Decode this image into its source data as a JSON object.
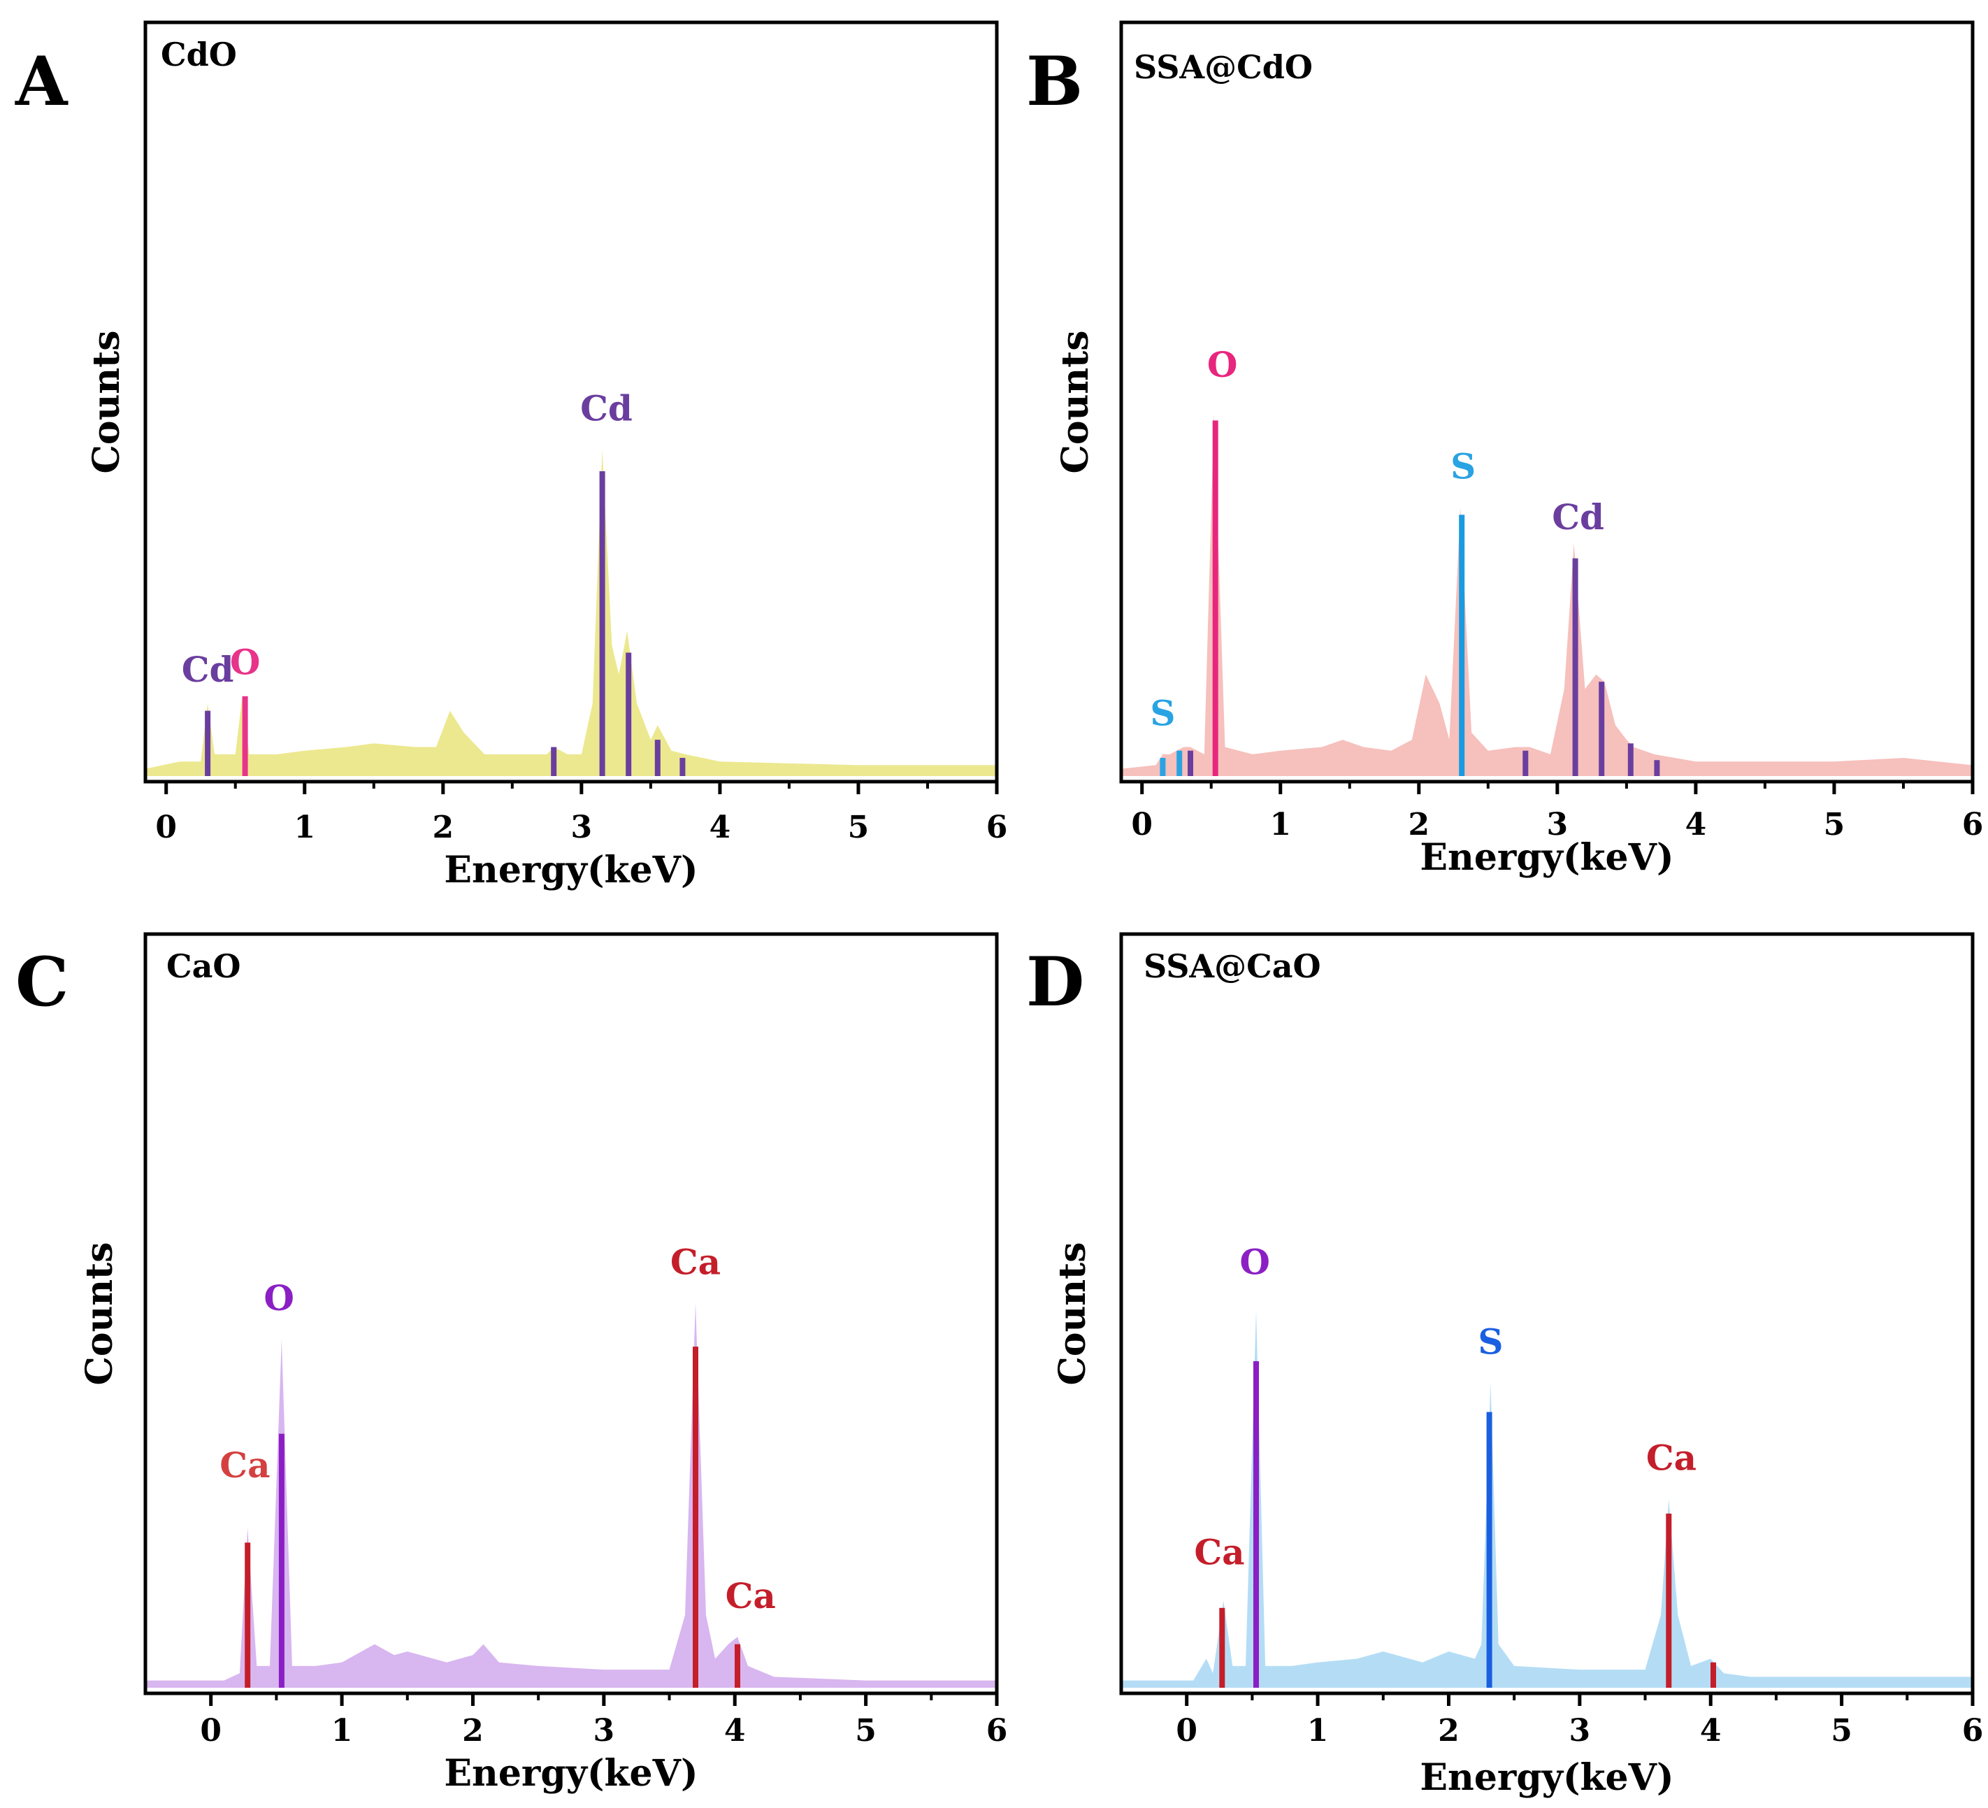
{
  "figure": {
    "panels": [
      "A",
      "B",
      "C",
      "D"
    ]
  },
  "chart_data": [
    {
      "panel_letter": "A",
      "type": "area",
      "title": "CdO",
      "xlabel": "Energy(keV)",
      "ylabel": "Counts",
      "xlim": [
        -0.15,
        6
      ],
      "ylim": [
        0,
        100
      ],
      "xticks": [
        0,
        1,
        2,
        3,
        4,
        5,
        6
      ],
      "fill_color": "#ece88f",
      "spectrum": [
        [
          -0.15,
          1
        ],
        [
          0.1,
          2
        ],
        [
          0.25,
          2
        ],
        [
          0.3,
          10
        ],
        [
          0.35,
          3
        ],
        [
          0.45,
          3
        ],
        [
          0.5,
          3
        ],
        [
          0.55,
          11
        ],
        [
          0.6,
          3
        ],
        [
          0.8,
          3
        ],
        [
          1.0,
          3.5
        ],
        [
          1.3,
          4
        ],
        [
          1.5,
          4.5
        ],
        [
          1.8,
          4
        ],
        [
          1.95,
          4
        ],
        [
          2.05,
          9
        ],
        [
          2.15,
          6
        ],
        [
          2.3,
          3
        ],
        [
          2.6,
          3
        ],
        [
          2.75,
          3
        ],
        [
          2.8,
          4
        ],
        [
          2.9,
          3
        ],
        [
          3.0,
          3
        ],
        [
          3.08,
          10
        ],
        [
          3.15,
          45
        ],
        [
          3.22,
          18
        ],
        [
          3.27,
          14
        ],
        [
          3.33,
          20
        ],
        [
          3.4,
          10
        ],
        [
          3.5,
          5
        ],
        [
          3.55,
          7
        ],
        [
          3.65,
          3.5
        ],
        [
          3.75,
          3
        ],
        [
          4.0,
          2
        ],
        [
          5.0,
          1.5
        ],
        [
          6,
          1.5
        ]
      ],
      "lines": [
        {
          "x": 0.3,
          "h": 9,
          "color": "#6a3e9e"
        },
        {
          "x": 0.57,
          "h": 11,
          "color": "#e8338a"
        },
        {
          "x": 2.8,
          "h": 4,
          "color": "#6a3e9e"
        },
        {
          "x": 3.15,
          "h": 42,
          "color": "#6a3e9e"
        },
        {
          "x": 3.34,
          "h": 17,
          "color": "#6a3e9e"
        },
        {
          "x": 3.55,
          "h": 5,
          "color": "#6a3e9e"
        },
        {
          "x": 3.73,
          "h": 2.5,
          "color": "#6a3e9e"
        }
      ],
      "labels": [
        {
          "text": "Cd",
          "x": 0.3,
          "y": 13,
          "color": "#6a3e9e"
        },
        {
          "text": "O",
          "x": 0.57,
          "y": 14,
          "color": "#e8338a"
        },
        {
          "text": "Cd",
          "x": 3.18,
          "y": 49,
          "color": "#6a3e9e"
        }
      ]
    },
    {
      "panel_letter": "B",
      "type": "area",
      "title": "SSA@CdO",
      "xlabel": "Energy(keV)",
      "ylabel": "Counts",
      "xlim": [
        -0.15,
        6
      ],
      "ylim": [
        0,
        100
      ],
      "xticks": [
        0,
        1,
        2,
        3,
        4,
        5,
        6
      ],
      "fill_color": "#f6c0bc",
      "spectrum": [
        [
          -0.15,
          1
        ],
        [
          0.1,
          1.5
        ],
        [
          0.15,
          3
        ],
        [
          0.2,
          3
        ],
        [
          0.25,
          3.5
        ],
        [
          0.3,
          4
        ],
        [
          0.35,
          4
        ],
        [
          0.45,
          3
        ],
        [
          0.52,
          50
        ],
        [
          0.6,
          4
        ],
        [
          0.8,
          3
        ],
        [
          1.0,
          3.5
        ],
        [
          1.3,
          4
        ],
        [
          1.45,
          5
        ],
        [
          1.6,
          4
        ],
        [
          1.8,
          3.5
        ],
        [
          1.95,
          5
        ],
        [
          2.05,
          14
        ],
        [
          2.15,
          10
        ],
        [
          2.22,
          5
        ],
        [
          2.3,
          37
        ],
        [
          2.38,
          6
        ],
        [
          2.5,
          3.5
        ],
        [
          2.7,
          4
        ],
        [
          2.8,
          4
        ],
        [
          2.95,
          3
        ],
        [
          3.05,
          12
        ],
        [
          3.12,
          32
        ],
        [
          3.2,
          12
        ],
        [
          3.28,
          14
        ],
        [
          3.34,
          13
        ],
        [
          3.42,
          7
        ],
        [
          3.5,
          5
        ],
        [
          3.55,
          4
        ],
        [
          3.7,
          3
        ],
        [
          4.0,
          2
        ],
        [
          5.0,
          2
        ],
        [
          5.5,
          2.5
        ],
        [
          6,
          1.5
        ]
      ],
      "lines": [
        {
          "x": 0.15,
          "h": 2.5,
          "color": "#29a3e3"
        },
        {
          "x": 0.27,
          "h": 3.5,
          "color": "#29a3e3"
        },
        {
          "x": 0.35,
          "h": 3.5,
          "color": "#6a3e9e"
        },
        {
          "x": 0.53,
          "h": 49,
          "color": "#e8267e"
        },
        {
          "x": 2.31,
          "h": 36,
          "color": "#1a9ae0"
        },
        {
          "x": 2.77,
          "h": 3.5,
          "color": "#6a3e9e"
        },
        {
          "x": 3.13,
          "h": 30,
          "color": "#6a3e9e"
        },
        {
          "x": 3.32,
          "h": 13,
          "color": "#6a3e9e"
        },
        {
          "x": 3.53,
          "h": 4.5,
          "color": "#6a3e9e"
        },
        {
          "x": 3.72,
          "h": 2.2,
          "color": "#6a3e9e"
        }
      ],
      "labels": [
        {
          "text": "S",
          "x": 0.15,
          "y": 7,
          "color": "#29a3e3"
        },
        {
          "text": "O",
          "x": 0.58,
          "y": 55,
          "color": "#e8267e"
        },
        {
          "text": "S",
          "x": 2.32,
          "y": 41,
          "color": "#29a3e3"
        },
        {
          "text": "Cd",
          "x": 3.15,
          "y": 34,
          "color": "#6a3e9e"
        }
      ]
    },
    {
      "panel_letter": "C",
      "type": "area",
      "title": "CaO",
      "xlabel": "Energy(keV)",
      "ylabel": "Counts",
      "xlim": [
        -0.5,
        6
      ],
      "ylim": [
        0,
        100
      ],
      "xticks": [
        0,
        1,
        2,
        3,
        4,
        5,
        6
      ],
      "fill_color": "#d8b6f0",
      "spectrum": [
        [
          -0.5,
          1
        ],
        [
          0.1,
          1
        ],
        [
          0.22,
          2
        ],
        [
          0.28,
          22
        ],
        [
          0.35,
          3
        ],
        [
          0.45,
          3
        ],
        [
          0.54,
          48
        ],
        [
          0.62,
          3
        ],
        [
          0.8,
          3
        ],
        [
          1.0,
          3.5
        ],
        [
          1.25,
          6
        ],
        [
          1.4,
          4.5
        ],
        [
          1.5,
          5
        ],
        [
          1.8,
          3.5
        ],
        [
          2.0,
          4.5
        ],
        [
          2.08,
          6
        ],
        [
          2.2,
          3.5
        ],
        [
          2.5,
          3
        ],
        [
          3.0,
          2.5
        ],
        [
          3.5,
          2.5
        ],
        [
          3.62,
          10
        ],
        [
          3.7,
          53
        ],
        [
          3.78,
          10
        ],
        [
          3.85,
          4
        ],
        [
          3.95,
          6
        ],
        [
          4.02,
          7
        ],
        [
          4.1,
          3
        ],
        [
          4.3,
          1.5
        ],
        [
          5.0,
          1
        ],
        [
          6,
          1
        ]
      ],
      "lines": [
        {
          "x": 0.28,
          "h": 20,
          "color": "#c41e2a"
        },
        {
          "x": 0.54,
          "h": 35,
          "color": "#8b1fc4"
        },
        {
          "x": 3.7,
          "h": 47,
          "color": "#c41e2a"
        },
        {
          "x": 4.02,
          "h": 6,
          "color": "#c41e2a"
        }
      ],
      "labels": [
        {
          "text": "Ca",
          "x": 0.26,
          "y": 29,
          "color": "#d44040"
        },
        {
          "text": "O",
          "x": 0.52,
          "y": 52,
          "color": "#8b1fc4"
        },
        {
          "text": "Ca",
          "x": 3.7,
          "y": 57,
          "color": "#c41e2a"
        },
        {
          "text": "Ca",
          "x": 4.12,
          "y": 11,
          "color": "#c41e2a"
        }
      ]
    },
    {
      "panel_letter": "D",
      "type": "area",
      "title": "SSA@CaO",
      "xlabel": "Energy(keV)",
      "ylabel": "Counts",
      "xlim": [
        -0.5,
        6
      ],
      "ylim": [
        0,
        100
      ],
      "xticks": [
        0,
        1,
        2,
        3,
        4,
        5,
        6
      ],
      "fill_color": "#b4ddf5",
      "spectrum": [
        [
          -0.5,
          1
        ],
        [
          0.05,
          1
        ],
        [
          0.15,
          4
        ],
        [
          0.2,
          2
        ],
        [
          0.28,
          12
        ],
        [
          0.35,
          3
        ],
        [
          0.45,
          3
        ],
        [
          0.53,
          52
        ],
        [
          0.6,
          3
        ],
        [
          0.8,
          3
        ],
        [
          1.0,
          3.5
        ],
        [
          1.3,
          4
        ],
        [
          1.5,
          5
        ],
        [
          1.8,
          3.5
        ],
        [
          2.0,
          5
        ],
        [
          2.2,
          4
        ],
        [
          2.25,
          6
        ],
        [
          2.32,
          42
        ],
        [
          2.38,
          6
        ],
        [
          2.5,
          3
        ],
        [
          3.0,
          2.5
        ],
        [
          3.5,
          2.5
        ],
        [
          3.62,
          10
        ],
        [
          3.68,
          26
        ],
        [
          3.75,
          10
        ],
        [
          3.85,
          3
        ],
        [
          4.0,
          4
        ],
        [
          4.1,
          2
        ],
        [
          4.3,
          1.5
        ],
        [
          5.0,
          1.5
        ],
        [
          6,
          1.5
        ]
      ],
      "lines": [
        {
          "x": 0.27,
          "h": 11,
          "color": "#c41e2a"
        },
        {
          "x": 0.53,
          "h": 45,
          "color": "#8b1fc4"
        },
        {
          "x": 2.31,
          "h": 38,
          "color": "#1a5fe0"
        },
        {
          "x": 3.68,
          "h": 24,
          "color": "#c41e2a"
        },
        {
          "x": 4.02,
          "h": 3.5,
          "color": "#c41e2a"
        }
      ],
      "labels": [
        {
          "text": "Ca",
          "x": 0.25,
          "y": 17,
          "color": "#c41e2a"
        },
        {
          "text": "O",
          "x": 0.52,
          "y": 57,
          "color": "#8b1fc4"
        },
        {
          "text": "S",
          "x": 2.32,
          "y": 46,
          "color": "#1a5fe0"
        },
        {
          "text": "Ca",
          "x": 3.7,
          "y": 30,
          "color": "#c41e2a"
        }
      ]
    }
  ]
}
